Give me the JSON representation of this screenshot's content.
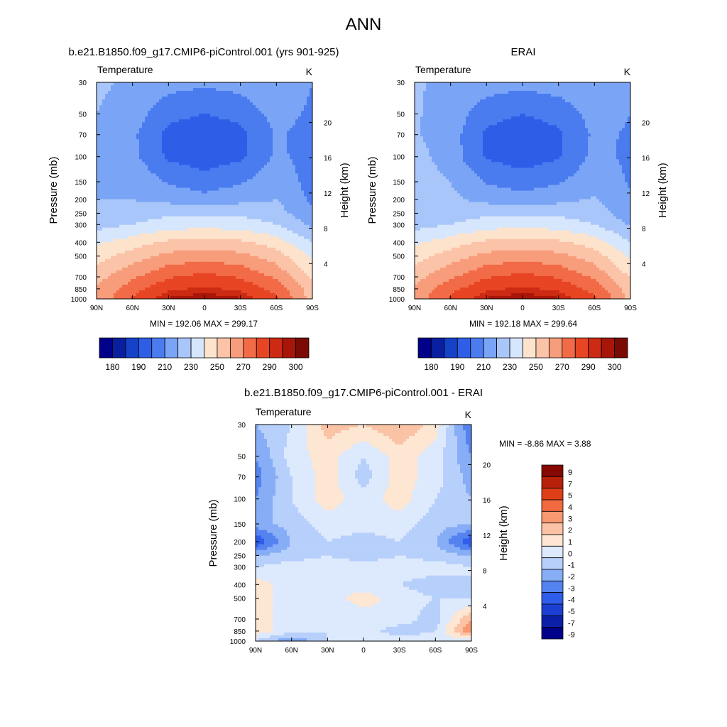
{
  "figure_title": "ANN",
  "colors": {
    "abs_scale": [
      "#00008b",
      "#0a1fa0",
      "#1442c8",
      "#2e5ee8",
      "#4a7cf0",
      "#7aa4f5",
      "#a9c6fa",
      "#d6e6fc",
      "#fde3cc",
      "#fbc3a8",
      "#f89d7b",
      "#f26b47",
      "#e74523",
      "#cc2a12",
      "#a8160a",
      "#7a0a03"
    ],
    "diff_scale": [
      "#00008b",
      "#0b20a8",
      "#1a3fd2",
      "#2f5deb",
      "#5483f0",
      "#86adf6",
      "#b7d0fb",
      "#dde9fd",
      "#fde6d2",
      "#fbc3a6",
      "#f79870",
      "#f16a3f",
      "#de3f17",
      "#b8200a",
      "#860800"
    ]
  },
  "panels": [
    {
      "id": "model",
      "title": "b.e21.B1850.f09_g17.CMIP6-piControl.001 (yrs 901-925)",
      "left_label": "Temperature",
      "right_label": "K",
      "ylabel": "Pressure (mb)",
      "y2label": "Height (km)",
      "stats": "MIN = 192.06  MAX = 299.17",
      "colorbar_ticks": [
        "180",
        "190",
        "210",
        "230",
        "250",
        "270",
        "290",
        "300"
      ]
    },
    {
      "id": "obs",
      "title": "ERAI",
      "left_label": "Temperature",
      "right_label": "K",
      "ylabel": "Pressure (mb)",
      "y2label": "Height (km)",
      "stats": "MIN = 192.18  MAX = 299.64",
      "colorbar_ticks": [
        "180",
        "190",
        "210",
        "230",
        "250",
        "270",
        "290",
        "300"
      ]
    },
    {
      "id": "diff",
      "title": "b.e21.B1850.f09_g17.CMIP6-piControl.001 - ERAI",
      "left_label": "Temperature",
      "right_label": "K",
      "ylabel": "Pressure (mb)",
      "y2label": "Height (km)",
      "stats": "MIN =  -8.86  MAX =   3.88",
      "colorbar_ticks": [
        "9",
        "7",
        "5",
        "4",
        "3",
        "2",
        "1",
        "0",
        "-1",
        "-2",
        "-3",
        "-4",
        "-5",
        "-7",
        "-9"
      ]
    }
  ],
  "chart_data": [
    {
      "type": "heatmap",
      "title": "b.e21.B1850.f09_g17.CMIP6-piControl.001 (yrs 901-925)",
      "variable": "Temperature",
      "units": "K",
      "xlabel": "",
      "ylabel": "Pressure (mb)",
      "y2label": "Height (km)",
      "x_ticks": [
        "90N",
        "60N",
        "30N",
        "0",
        "30S",
        "60S",
        "90S"
      ],
      "y_ticks": [
        30,
        50,
        70,
        100,
        150,
        200,
        250,
        300,
        400,
        500,
        700,
        850,
        1000
      ],
      "y2_ticks": [
        4,
        8,
        12,
        16,
        20
      ],
      "x": [
        -90,
        -60,
        -30,
        0,
        30,
        60,
        90
      ],
      "y": [
        30,
        50,
        70,
        100,
        150,
        200,
        250,
        300,
        400,
        500,
        700,
        850,
        1000
      ],
      "z": [
        [
          222,
          218,
          214,
          212,
          214,
          220,
          210
        ],
        [
          220,
          215,
          203,
          200,
          203,
          214,
          208
        ],
        [
          219,
          212,
          197,
          193,
          197,
          211,
          207
        ],
        [
          218,
          213,
          198,
          195,
          198,
          212,
          206
        ],
        [
          219,
          218,
          209,
          204,
          209,
          217,
          206
        ],
        [
          220,
          220,
          217,
          214,
          217,
          220,
          208
        ],
        [
          222,
          224,
          228,
          227,
          228,
          224,
          213
        ],
        [
          226,
          230,
          235,
          236,
          235,
          230,
          218
        ],
        [
          238,
          245,
          252,
          254,
          252,
          245,
          230
        ],
        [
          246,
          255,
          263,
          266,
          263,
          255,
          238
        ],
        [
          256,
          268,
          279,
          283,
          279,
          268,
          248
        ],
        [
          261,
          276,
          288,
          292,
          288,
          276,
          254
        ],
        [
          262,
          281,
          296,
          299,
          296,
          282,
          256
        ]
      ],
      "contour_levels": [
        180,
        185,
        190,
        200,
        210,
        220,
        230,
        240,
        250,
        260,
        270,
        280,
        290,
        295,
        300
      ],
      "colorbar_ticks": [
        "180",
        "190",
        "210",
        "230",
        "250",
        "270",
        "290",
        "300"
      ],
      "min": 192.06,
      "max": 299.17
    },
    {
      "type": "heatmap",
      "title": "ERAI",
      "variable": "Temperature",
      "units": "K",
      "xlabel": "",
      "ylabel": "Pressure (mb)",
      "y2label": "Height (km)",
      "x_ticks": [
        "90N",
        "60N",
        "30N",
        "0",
        "30S",
        "60S",
        "90S"
      ],
      "y_ticks": [
        30,
        50,
        70,
        100,
        150,
        200,
        250,
        300,
        400,
        500,
        700,
        850,
        1000
      ],
      "y2_ticks": [
        4,
        8,
        12,
        16,
        20
      ],
      "x": [
        -90,
        -60,
        -30,
        0,
        30,
        60,
        90
      ],
      "y": [
        30,
        50,
        70,
        100,
        150,
        200,
        250,
        300,
        400,
        500,
        700,
        850,
        1000
      ],
      "z": [
        [
          221,
          218,
          215,
          213,
          215,
          218,
          212
        ],
        [
          221,
          216,
          204,
          200,
          204,
          214,
          210
        ],
        [
          221,
          215,
          198,
          193,
          198,
          212,
          209
        ],
        [
          224,
          215,
          199,
          195,
          199,
          213,
          208
        ],
        [
          226,
          220,
          209,
          205,
          209,
          217,
          209
        ],
        [
          224,
          222,
          217,
          214,
          217,
          221,
          211
        ],
        [
          222,
          225,
          228,
          227,
          228,
          225,
          214
        ],
        [
          226,
          230,
          235,
          237,
          235,
          230,
          219
        ],
        [
          238,
          245,
          252,
          254,
          252,
          245,
          230
        ],
        [
          246,
          255,
          263,
          266,
          263,
          255,
          238
        ],
        [
          256,
          268,
          279,
          283,
          279,
          268,
          249
        ],
        [
          262,
          277,
          288,
          292,
          288,
          276,
          254
        ],
        [
          264,
          282,
          296,
          299,
          296,
          283,
          257
        ]
      ],
      "contour_levels": [
        180,
        185,
        190,
        200,
        210,
        220,
        230,
        240,
        250,
        260,
        270,
        280,
        290,
        295,
        300
      ],
      "colorbar_ticks": [
        "180",
        "190",
        "210",
        "230",
        "250",
        "270",
        "290",
        "300"
      ],
      "min": 192.18,
      "max": 299.64
    },
    {
      "type": "heatmap",
      "title": "b.e21.B1850.f09_g17.CMIP6-piControl.001 - ERAI",
      "variable": "Temperature",
      "units": "K",
      "xlabel": "",
      "ylabel": "Pressure (mb)",
      "y2label": "Height (km)",
      "x_ticks": [
        "90N",
        "60N",
        "30N",
        "0",
        "30S",
        "60S",
        "90S"
      ],
      "y_ticks": [
        30,
        50,
        70,
        100,
        150,
        200,
        250,
        300,
        400,
        500,
        700,
        850,
        1000
      ],
      "y2_ticks": [
        4,
        8,
        12,
        16,
        20
      ],
      "x": [
        -90,
        -60,
        -30,
        0,
        30,
        60,
        90
      ],
      "y": [
        30,
        50,
        70,
        100,
        150,
        200,
        250,
        300,
        400,
        500,
        700,
        850,
        1000
      ],
      "z": [
        [
          -2,
          -1,
          1.5,
          1,
          2,
          0.5,
          -4
        ],
        [
          -3,
          -0.5,
          0.5,
          -1,
          0.5,
          -0.5,
          -3
        ],
        [
          -3.5,
          -1,
          0.5,
          -1.5,
          0.5,
          -0.5,
          -2.5
        ],
        [
          -3,
          -1,
          0.5,
          -0.5,
          0.5,
          -1,
          -2
        ],
        [
          -2.5,
          -1.5,
          -0.5,
          -0.5,
          -0.5,
          -1.5,
          -2
        ],
        [
          -5,
          -2,
          -1,
          -1.5,
          -1,
          -2,
          -5
        ],
        [
          -2,
          -1.5,
          -1,
          -1.5,
          -1,
          -1.5,
          -2
        ],
        [
          -1,
          -0.5,
          -0.5,
          -0.5,
          -0.5,
          -0.5,
          -1
        ],
        [
          0.5,
          -0.5,
          -0.5,
          -0.5,
          -1,
          -1.5,
          -1
        ],
        [
          0.5,
          -0.5,
          -0.5,
          0.5,
          -0.5,
          -1,
          -1
        ],
        [
          0.5,
          -0.5,
          -1,
          -0.5,
          -0.5,
          -1.5,
          2
        ],
        [
          0.5,
          -0.5,
          -1,
          -0.5,
          -1.5,
          -1,
          3
        ],
        [
          -1,
          -3,
          -1,
          -0.5,
          -0.5,
          -0.5,
          -0.5
        ]
      ],
      "contour_levels": [
        -9,
        -7,
        -5,
        -4,
        -3,
        -2,
        -1,
        0,
        1,
        2,
        3,
        4,
        5,
        7,
        9
      ],
      "colorbar_ticks": [
        "9",
        "7",
        "5",
        "4",
        "3",
        "2",
        "1",
        "0",
        "-1",
        "-2",
        "-3",
        "-4",
        "-5",
        "-7",
        "-9"
      ],
      "min": -8.86,
      "max": 3.88
    }
  ]
}
